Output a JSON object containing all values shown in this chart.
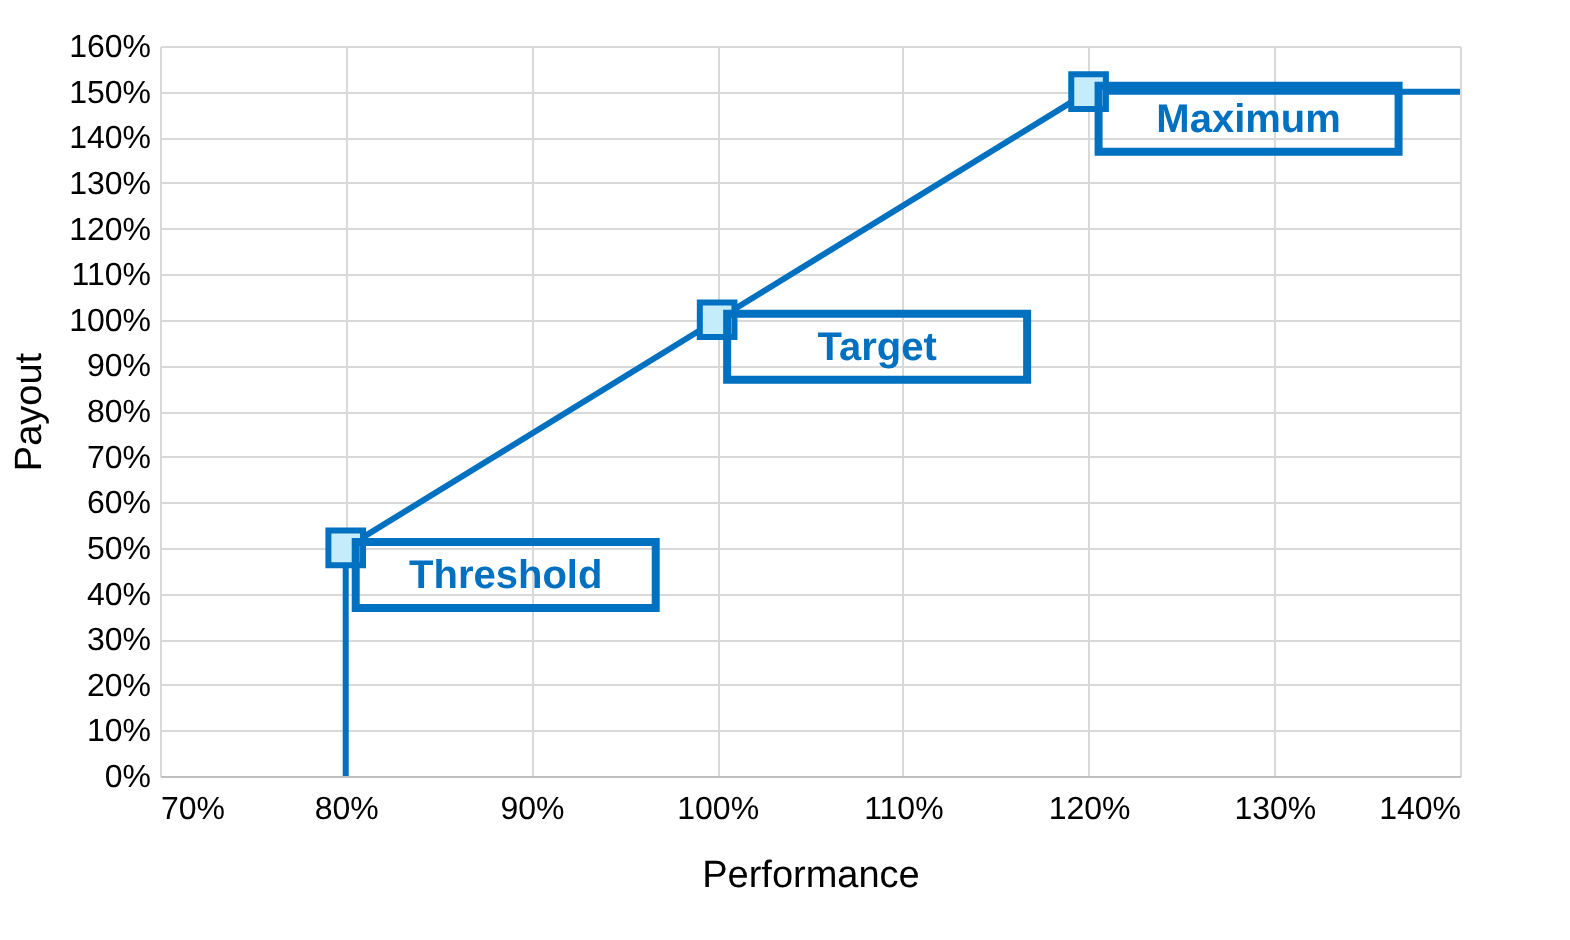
{
  "chart_data": {
    "type": "line",
    "xlabel": "Performance",
    "ylabel": "Payout",
    "xlim": [
      70,
      140
    ],
    "ylim": [
      0,
      160
    ],
    "xticks": [
      {
        "value": 70,
        "label": "70%"
      },
      {
        "value": 80,
        "label": "80%"
      },
      {
        "value": 90,
        "label": "90%"
      },
      {
        "value": 100,
        "label": "100%"
      },
      {
        "value": 110,
        "label": "110%"
      },
      {
        "value": 120,
        "label": "120%"
      },
      {
        "value": 130,
        "label": "130%"
      },
      {
        "value": 140,
        "label": "140%"
      }
    ],
    "yticks": [
      {
        "value": 0,
        "label": "0%"
      },
      {
        "value": 10,
        "label": "10%"
      },
      {
        "value": 20,
        "label": "20%"
      },
      {
        "value": 30,
        "label": "30%"
      },
      {
        "value": 40,
        "label": "40%"
      },
      {
        "value": 50,
        "label": "50%"
      },
      {
        "value": 60,
        "label": "60%"
      },
      {
        "value": 70,
        "label": "70%"
      },
      {
        "value": 80,
        "label": "80%"
      },
      {
        "value": 90,
        "label": "90%"
      },
      {
        "value": 100,
        "label": "100%"
      },
      {
        "value": 110,
        "label": "110%"
      },
      {
        "value": 120,
        "label": "120%"
      },
      {
        "value": 130,
        "label": "130%"
      },
      {
        "value": 140,
        "label": "140%"
      },
      {
        "value": 150,
        "label": "150%"
      },
      {
        "value": 160,
        "label": "160%"
      }
    ],
    "grid": true,
    "series": [
      {
        "type": "line",
        "color": "#0070c0",
        "marker": "none",
        "x": [
          80,
          80,
          100,
          120,
          140
        ],
        "values": [
          0,
          50,
          100,
          150,
          150
        ]
      },
      {
        "type": "scatter",
        "color": "#c5ecfb",
        "marker": "square",
        "x": [
          80,
          100,
          120
        ],
        "values": [
          50,
          100,
          150
        ]
      }
    ],
    "annotations": [
      {
        "text": "Threshold",
        "x": 80,
        "y": 50
      },
      {
        "text": "Target",
        "x": 100,
        "y": 100
      },
      {
        "text": "Maximum",
        "x": 120,
        "y": 150
      }
    ]
  }
}
